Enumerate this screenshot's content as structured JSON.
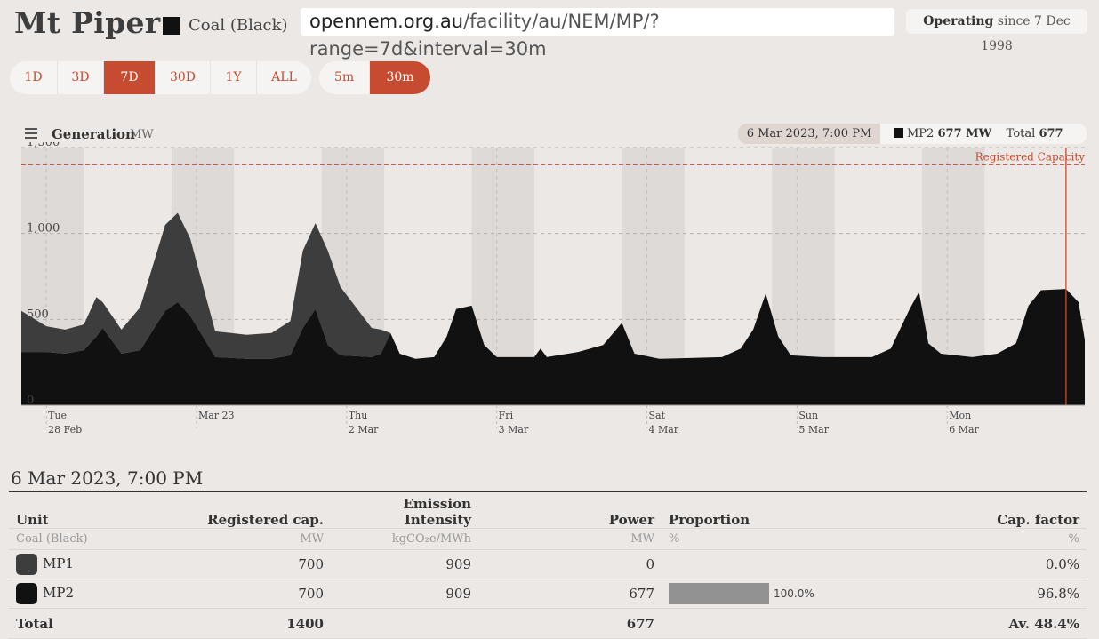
{
  "header": {
    "title": "Mt Piper",
    "fuel_label": "Coal (Black)",
    "fuel_color": "#111111",
    "url_host": "opennem.org.au",
    "url_path": "/facility/au/NEM/MP/?range=7d&interval=30m",
    "status_label": "Operating",
    "status_since": "since 7 Dec 1998"
  },
  "range_buttons": [
    {
      "label": "1D",
      "active": false
    },
    {
      "label": "3D",
      "active": false
    },
    {
      "label": "7D",
      "active": true
    },
    {
      "label": "30D",
      "active": false
    },
    {
      "label": "1Y",
      "active": false
    },
    {
      "label": "ALL",
      "active": false
    }
  ],
  "interval_buttons": [
    {
      "label": "5m",
      "active": false
    },
    {
      "label": "30m",
      "active": true
    }
  ],
  "chart_header": {
    "title": "Generation",
    "unit": "MW",
    "tooltip_date": "6 Mar 2023, 7:00 PM",
    "tooltip_unit_name": "MP2",
    "tooltip_unit_value": "677 MW",
    "tooltip_total_label": "Total",
    "tooltip_total_value": "677 MW"
  },
  "chart_data": {
    "type": "area",
    "stacked": true,
    "title": "Generation",
    "ylabel": "MW",
    "ylim": [
      0,
      1500
    ],
    "yticks": [
      0,
      500,
      1000,
      1500
    ],
    "ytick_labels": [
      "0",
      "500",
      "1,000",
      "1,500"
    ],
    "x_start": "2023-02-27T20:00",
    "x_end": "2023-03-06T22:00",
    "x_ticks": [
      {
        "at": "2023-02-28T00:00",
        "line1": "Tue",
        "line2": "28 Feb"
      },
      {
        "at": "2023-03-01T00:00",
        "line1": "Mar 23",
        "line2": ""
      },
      {
        "at": "2023-03-02T00:00",
        "line1": "Thu",
        "line2": "2 Mar"
      },
      {
        "at": "2023-03-03T00:00",
        "line1": "Fri",
        "line2": "3 Mar"
      },
      {
        "at": "2023-03-04T00:00",
        "line1": "Sat",
        "line2": "4 Mar"
      },
      {
        "at": "2023-03-05T00:00",
        "line1": "Sun",
        "line2": "5 Mar"
      },
      {
        "at": "2023-03-06T00:00",
        "line1": "Mon",
        "line2": "6 Mar"
      }
    ],
    "registered_capacity": 1400,
    "registered_capacity_label": "Registered Capacity",
    "cursor_time": "2023-03-06T19:00",
    "series": [
      {
        "name": "MP2",
        "color": "#111111",
        "points": [
          [
            "2023-02-27T20:00",
            310
          ],
          [
            "2023-02-28T00:00",
            310
          ],
          [
            "2023-02-28T03:00",
            300
          ],
          [
            "2023-02-28T06:00",
            320
          ],
          [
            "2023-02-28T08:00",
            400
          ],
          [
            "2023-02-28T09:00",
            450
          ],
          [
            "2023-02-28T12:00",
            300
          ],
          [
            "2023-02-28T15:00",
            320
          ],
          [
            "2023-02-28T19:00",
            550
          ],
          [
            "2023-02-28T21:00",
            600
          ],
          [
            "2023-02-28T23:00",
            520
          ],
          [
            "2023-03-01T01:00",
            400
          ],
          [
            "2023-03-01T03:00",
            280
          ],
          [
            "2023-03-01T08:00",
            270
          ],
          [
            "2023-03-01T12:00",
            270
          ],
          [
            "2023-03-01T15:00",
            290
          ],
          [
            "2023-03-01T17:00",
            450
          ],
          [
            "2023-03-01T19:00",
            560
          ],
          [
            "2023-03-01T21:00",
            350
          ],
          [
            "2023-03-01T23:00",
            290
          ],
          [
            "2023-03-02T04:00",
            280
          ],
          [
            "2023-03-02T05:30",
            300
          ],
          [
            "2023-03-02T07:00",
            420
          ],
          [
            "2023-03-02T08:30",
            300
          ],
          [
            "2023-03-02T11:00",
            270
          ],
          [
            "2023-03-02T14:00",
            280
          ],
          [
            "2023-03-02T16:00",
            400
          ],
          [
            "2023-03-02T17:30",
            560
          ],
          [
            "2023-03-02T20:00",
            580
          ],
          [
            "2023-03-02T22:00",
            350
          ],
          [
            "2023-03-03T00:00",
            280
          ],
          [
            "2023-03-03T06:00",
            280
          ],
          [
            "2023-03-03T07:00",
            330
          ],
          [
            "2023-03-03T08:00",
            280
          ],
          [
            "2023-03-03T13:00",
            310
          ],
          [
            "2023-03-03T17:00",
            350
          ],
          [
            "2023-03-03T20:00",
            480
          ],
          [
            "2023-03-03T22:00",
            300
          ],
          [
            "2023-03-04T02:00",
            270
          ],
          [
            "2023-03-04T12:00",
            280
          ],
          [
            "2023-03-04T15:00",
            330
          ],
          [
            "2023-03-04T17:00",
            440
          ],
          [
            "2023-03-04T19:00",
            650
          ],
          [
            "2023-03-04T21:00",
            400
          ],
          [
            "2023-03-04T23:00",
            290
          ],
          [
            "2023-03-05T04:00",
            280
          ],
          [
            "2023-03-05T12:00",
            280
          ],
          [
            "2023-03-05T15:00",
            330
          ],
          [
            "2023-03-05T18:00",
            560
          ],
          [
            "2023-03-05T19:30",
            660
          ],
          [
            "2023-03-05T21:00",
            360
          ],
          [
            "2023-03-05T23:00",
            300
          ],
          [
            "2023-03-06T04:00",
            280
          ],
          [
            "2023-03-06T08:00",
            300
          ],
          [
            "2023-03-06T11:00",
            360
          ],
          [
            "2023-03-06T13:00",
            580
          ],
          [
            "2023-03-06T15:00",
            670
          ],
          [
            "2023-03-06T19:00",
            677
          ],
          [
            "2023-03-06T21:00",
            600
          ],
          [
            "2023-03-06T22:00",
            380
          ]
        ]
      },
      {
        "name": "MP1",
        "color": "#3d3d3d",
        "points": [
          [
            "2023-02-27T20:00",
            240
          ],
          [
            "2023-02-28T00:00",
            150
          ],
          [
            "2023-02-28T03:00",
            140
          ],
          [
            "2023-02-28T06:00",
            150
          ],
          [
            "2023-02-28T08:00",
            230
          ],
          [
            "2023-02-28T09:00",
            150
          ],
          [
            "2023-02-28T12:00",
            140
          ],
          [
            "2023-02-28T15:00",
            250
          ],
          [
            "2023-02-28T19:00",
            500
          ],
          [
            "2023-02-28T21:00",
            520
          ],
          [
            "2023-02-28T23:00",
            450
          ],
          [
            "2023-03-01T01:00",
            300
          ],
          [
            "2023-03-01T03:00",
            150
          ],
          [
            "2023-03-01T08:00",
            140
          ],
          [
            "2023-03-01T12:00",
            150
          ],
          [
            "2023-03-01T15:00",
            200
          ],
          [
            "2023-03-01T17:00",
            450
          ],
          [
            "2023-03-01T19:00",
            500
          ],
          [
            "2023-03-01T21:00",
            550
          ],
          [
            "2023-03-01T23:00",
            400
          ],
          [
            "2023-03-02T04:00",
            170
          ],
          [
            "2023-03-02T05:30",
            140
          ],
          [
            "2023-03-02T07:00",
            0
          ],
          [
            "2023-03-02T08:30",
            0
          ],
          [
            "2023-03-02T11:00",
            0
          ],
          [
            "2023-03-02T14:00",
            0
          ],
          [
            "2023-03-02T16:00",
            0
          ],
          [
            "2023-03-02T17:30",
            0
          ],
          [
            "2023-03-02T20:00",
            0
          ],
          [
            "2023-03-02T22:00",
            0
          ],
          [
            "2023-03-03T00:00",
            0
          ],
          [
            "2023-03-03T06:00",
            0
          ],
          [
            "2023-03-03T07:00",
            0
          ],
          [
            "2023-03-03T08:00",
            0
          ],
          [
            "2023-03-03T13:00",
            0
          ],
          [
            "2023-03-03T17:00",
            0
          ],
          [
            "2023-03-03T20:00",
            0
          ],
          [
            "2023-03-03T22:00",
            0
          ],
          [
            "2023-03-04T02:00",
            0
          ],
          [
            "2023-03-04T12:00",
            0
          ],
          [
            "2023-03-04T15:00",
            0
          ],
          [
            "2023-03-04T17:00",
            0
          ],
          [
            "2023-03-04T19:00",
            0
          ],
          [
            "2023-03-04T21:00",
            0
          ],
          [
            "2023-03-04T23:00",
            0
          ],
          [
            "2023-03-05T04:00",
            0
          ],
          [
            "2023-03-05T12:00",
            0
          ],
          [
            "2023-03-05T15:00",
            0
          ],
          [
            "2023-03-05T18:00",
            0
          ],
          [
            "2023-03-05T19:30",
            0
          ],
          [
            "2023-03-05T21:00",
            0
          ],
          [
            "2023-03-05T23:00",
            0
          ],
          [
            "2023-03-06T04:00",
            0
          ],
          [
            "2023-03-06T08:00",
            0
          ],
          [
            "2023-03-06T11:00",
            0
          ],
          [
            "2023-03-06T13:00",
            0
          ],
          [
            "2023-03-06T15:00",
            0
          ],
          [
            "2023-03-06T19:00",
            0
          ],
          [
            "2023-03-06T21:00",
            0
          ],
          [
            "2023-03-06T22:00",
            0
          ]
        ]
      }
    ]
  },
  "table": {
    "heading": "6 Mar 2023, 7:00 PM",
    "columns": {
      "unit": "Unit",
      "unit_sub": "Coal (Black)",
      "reg_cap": "Registered cap.",
      "reg_cap_sub": "MW",
      "emission": "Emission Intensity",
      "emission_sub": "kgCO₂e/MWh",
      "power": "Power",
      "power_sub": "MW",
      "proportion": "Proportion",
      "proportion_sub": "%",
      "cap_factor": "Cap. factor",
      "cap_factor_sub": "%"
    },
    "rows": [
      {
        "unit": "MP1",
        "color": "#3d3d3d",
        "reg_cap": "700",
        "emission": "909",
        "power": "0",
        "proportion": "",
        "proportion_value": 0,
        "cap_factor": "0.0%"
      },
      {
        "unit": "MP2",
        "color": "#111111",
        "reg_cap": "700",
        "emission": "909",
        "power": "677",
        "proportion": "100.0%",
        "proportion_value": 1.0,
        "cap_factor": "96.8%"
      }
    ],
    "total": {
      "label": "Total",
      "reg_cap": "1400",
      "power": "677",
      "cap_factor": "Av. 48.4%"
    }
  }
}
